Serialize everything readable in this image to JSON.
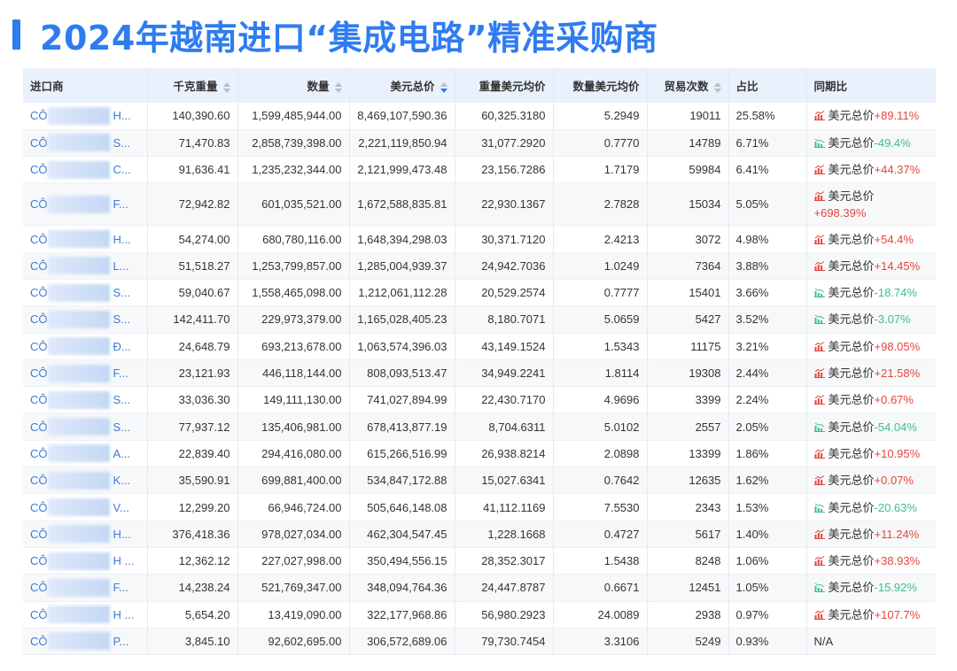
{
  "title": "2024年越南进口“集成电路”精准采购商",
  "colors": {
    "accent": "#2f7cf0",
    "up": "#e5463c",
    "down": "#3cc08a",
    "header_bg": "#e9f1fd",
    "company_link": "#3a7bd5"
  },
  "table": {
    "columns": [
      {
        "label": "进口商",
        "sortable": false
      },
      {
        "label": "千克重量",
        "sortable": true,
        "sort_active": false
      },
      {
        "label": "数量",
        "sortable": true,
        "sort_active": false
      },
      {
        "label": "美元总价",
        "sortable": true,
        "sort_active": true,
        "sort_direction": "desc"
      },
      {
        "label": "重量美元均价",
        "sortable": false
      },
      {
        "label": "数量美元均价",
        "sortable": false
      },
      {
        "label": "贸易次数",
        "sortable": true,
        "sort_active": false
      },
      {
        "label": "占比",
        "sortable": false
      },
      {
        "label": "同期比",
        "sortable": false
      }
    ],
    "yoy_label": "美元总价",
    "rows": [
      {
        "importer_prefix": "CÔ",
        "importer_suffix": "H...",
        "kg": "140,390.60",
        "qty": "1,599,485,944.00",
        "usd": "8,469,107,590.36",
        "usd_per_kg": "60,325.3180",
        "usd_per_unit": "5.2949",
        "trades": "19011",
        "share": "25.58%",
        "yoy_trend": "up",
        "yoy_value": "+89.11%"
      },
      {
        "importer_prefix": "CÔ",
        "importer_suffix": "S...",
        "kg": "71,470.83",
        "qty": "2,858,739,398.00",
        "usd": "2,221,119,850.94",
        "usd_per_kg": "31,077.2920",
        "usd_per_unit": "0.7770",
        "trades": "14789",
        "share": "6.71%",
        "yoy_trend": "down",
        "yoy_value": "-49.4%"
      },
      {
        "importer_prefix": "CÔ",
        "importer_suffix": "C...",
        "kg": "91,636.41",
        "qty": "1,235,232,344.00",
        "usd": "2,121,999,473.48",
        "usd_per_kg": "23,156.7286",
        "usd_per_unit": "1.7179",
        "trades": "59984",
        "share": "6.41%",
        "yoy_trend": "up",
        "yoy_value": "+44.37%"
      },
      {
        "importer_prefix": "CÔ",
        "importer_suffix": "F...",
        "kg": "72,942.82",
        "qty": "601,035,521.00",
        "usd": "1,672,588,835.81",
        "usd_per_kg": "22,930.1367",
        "usd_per_unit": "2.7828",
        "trades": "15034",
        "share": "5.05%",
        "yoy_trend": "up",
        "yoy_value": "+698.39%",
        "wrapped": true
      },
      {
        "importer_prefix": "CÔ",
        "importer_suffix": "H...",
        "kg": "54,274.00",
        "qty": "680,780,116.00",
        "usd": "1,648,394,298.03",
        "usd_per_kg": "30,371.7120",
        "usd_per_unit": "2.4213",
        "trades": "3072",
        "share": "4.98%",
        "yoy_trend": "up",
        "yoy_value": "+54.4%"
      },
      {
        "importer_prefix": "CÔ",
        "importer_suffix": "L...",
        "kg": "51,518.27",
        "qty": "1,253,799,857.00",
        "usd": "1,285,004,939.37",
        "usd_per_kg": "24,942.7036",
        "usd_per_unit": "1.0249",
        "trades": "7364",
        "share": "3.88%",
        "yoy_trend": "up",
        "yoy_value": "+14.45%"
      },
      {
        "importer_prefix": "CÔ",
        "importer_suffix": "S...",
        "kg": "59,040.67",
        "qty": "1,558,465,098.00",
        "usd": "1,212,061,112.28",
        "usd_per_kg": "20,529.2574",
        "usd_per_unit": "0.7777",
        "trades": "15401",
        "share": "3.66%",
        "yoy_trend": "down",
        "yoy_value": "-18.74%"
      },
      {
        "importer_prefix": "CÔ",
        "importer_suffix": "S...",
        "kg": "142,411.70",
        "qty": "229,973,379.00",
        "usd": "1,165,028,405.23",
        "usd_per_kg": "8,180.7071",
        "usd_per_unit": "5.0659",
        "trades": "5427",
        "share": "3.52%",
        "yoy_trend": "down",
        "yoy_value": "-3.07%"
      },
      {
        "importer_prefix": "CÔ",
        "importer_suffix": "Đ...",
        "kg": "24,648.79",
        "qty": "693,213,678.00",
        "usd": "1,063,574,396.03",
        "usd_per_kg": "43,149.1524",
        "usd_per_unit": "1.5343",
        "trades": "11175",
        "share": "3.21%",
        "yoy_trend": "up",
        "yoy_value": "+98.05%"
      },
      {
        "importer_prefix": "CÔ",
        "importer_suffix": "F...",
        "kg": "23,121.93",
        "qty": "446,118,144.00",
        "usd": "808,093,513.47",
        "usd_per_kg": "34,949.2241",
        "usd_per_unit": "1.8114",
        "trades": "19308",
        "share": "2.44%",
        "yoy_trend": "up",
        "yoy_value": "+21.58%"
      },
      {
        "importer_prefix": "CÔ",
        "importer_suffix": "S...",
        "kg": "33,036.30",
        "qty": "149,111,130.00",
        "usd": "741,027,894.99",
        "usd_per_kg": "22,430.7170",
        "usd_per_unit": "4.9696",
        "trades": "3399",
        "share": "2.24%",
        "yoy_trend": "up",
        "yoy_value": "+0.67%"
      },
      {
        "importer_prefix": "CÔ",
        "importer_suffix": "S...",
        "kg": "77,937.12",
        "qty": "135,406,981.00",
        "usd": "678,413,877.19",
        "usd_per_kg": "8,704.6311",
        "usd_per_unit": "5.0102",
        "trades": "2557",
        "share": "2.05%",
        "yoy_trend": "down",
        "yoy_value": "-54.04%"
      },
      {
        "importer_prefix": "CÔ",
        "importer_suffix": "A...",
        "kg": "22,839.40",
        "qty": "294,416,080.00",
        "usd": "615,266,516.99",
        "usd_per_kg": "26,938.8214",
        "usd_per_unit": "2.0898",
        "trades": "13399",
        "share": "1.86%",
        "yoy_trend": "up",
        "yoy_value": "+10.95%"
      },
      {
        "importer_prefix": "CÔ",
        "importer_suffix": "K...",
        "kg": "35,590.91",
        "qty": "699,881,400.00",
        "usd": "534,847,172.88",
        "usd_per_kg": "15,027.6341",
        "usd_per_unit": "0.7642",
        "trades": "12635",
        "share": "1.62%",
        "yoy_trend": "up",
        "yoy_value": "+0.07%"
      },
      {
        "importer_prefix": "CÔ",
        "importer_suffix": "V...",
        "kg": "12,299.20",
        "qty": "66,946,724.00",
        "usd": "505,646,148.08",
        "usd_per_kg": "41,112.1169",
        "usd_per_unit": "7.5530",
        "trades": "2343",
        "share": "1.53%",
        "yoy_trend": "down",
        "yoy_value": "-20.63%"
      },
      {
        "importer_prefix": "CÔ",
        "importer_suffix": "H...",
        "kg": "376,418.36",
        "qty": "978,027,034.00",
        "usd": "462,304,547.45",
        "usd_per_kg": "1,228.1668",
        "usd_per_unit": "0.4727",
        "trades": "5617",
        "share": "1.40%",
        "yoy_trend": "up",
        "yoy_value": "+11.24%"
      },
      {
        "importer_prefix": "CÔ",
        "importer_suffix": "H ...",
        "kg": "12,362.12",
        "qty": "227,027,998.00",
        "usd": "350,494,556.15",
        "usd_per_kg": "28,352.3017",
        "usd_per_unit": "1.5438",
        "trades": "8248",
        "share": "1.06%",
        "yoy_trend": "up",
        "yoy_value": "+38.93%"
      },
      {
        "importer_prefix": "CÔ",
        "importer_suffix": "F...",
        "kg": "14,238.24",
        "qty": "521,769,347.00",
        "usd": "348,094,764.36",
        "usd_per_kg": "24,447.8787",
        "usd_per_unit": "0.6671",
        "trades": "12451",
        "share": "1.05%",
        "yoy_trend": "down",
        "yoy_value": "-15.92%"
      },
      {
        "importer_prefix": "CÔ",
        "importer_suffix": "H ...",
        "kg": "5,654.20",
        "qty": "13,419,090.00",
        "usd": "322,177,968.86",
        "usd_per_kg": "56,980.2923",
        "usd_per_unit": "24.0089",
        "trades": "2938",
        "share": "0.97%",
        "yoy_trend": "up",
        "yoy_value": "+107.7%"
      },
      {
        "importer_prefix": "CÔ",
        "importer_suffix": "P...",
        "kg": "3,845.10",
        "qty": "92,602,695.00",
        "usd": "306,572,689.06",
        "usd_per_kg": "79,730.7454",
        "usd_per_unit": "3.3106",
        "trades": "5249",
        "share": "0.93%",
        "yoy_trend": "none",
        "yoy_value": "N/A"
      }
    ]
  }
}
